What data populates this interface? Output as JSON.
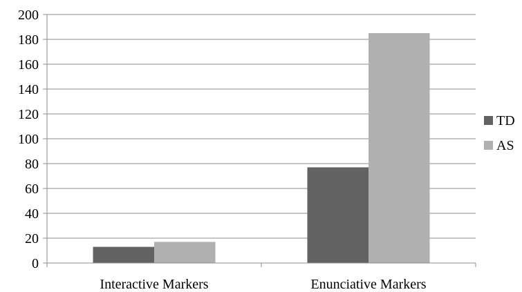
{
  "chart_data": {
    "type": "bar",
    "title": "",
    "xlabel": "",
    "ylabel": "",
    "categories": [
      "Interactive Markers",
      "Enunciative Markers"
    ],
    "series": [
      {
        "name": "TD",
        "values": [
          13,
          77
        ],
        "color": "#626262"
      },
      {
        "name": "AS",
        "values": [
          17,
          185
        ],
        "color": "#b0b0b0"
      }
    ],
    "ylim": [
      0,
      200
    ],
    "yticks": [
      0,
      20,
      40,
      60,
      80,
      100,
      120,
      140,
      160,
      180,
      200
    ],
    "grid": true,
    "legend_position": "right"
  }
}
